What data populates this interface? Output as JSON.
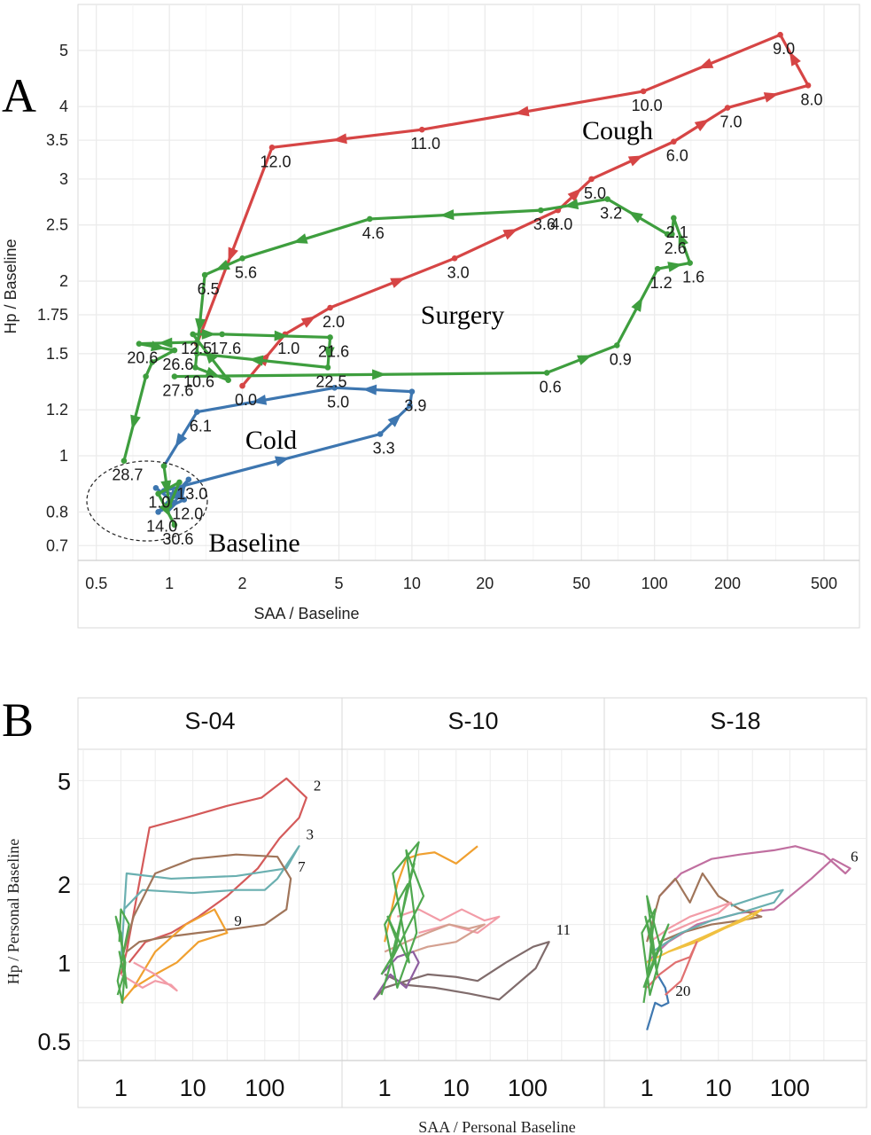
{
  "figure": {
    "panel_a_letter": "A",
    "panel_b_letter": "B"
  },
  "chart_data": [
    {
      "type": "line",
      "panel": "A",
      "xlabel": "SAA / Baseline",
      "ylabel": "Hp / Baseline",
      "xscale": "log",
      "yscale": "log",
      "xlim": [
        0.42,
        700
      ],
      "ylim": [
        0.66,
        6.0
      ],
      "xticks": [
        0.5,
        1,
        2,
        5,
        10,
        20,
        50,
        100,
        200,
        500
      ],
      "xtick_labels": [
        "0.5",
        "1",
        "2",
        "5",
        "10",
        "20",
        "50",
        "100",
        "200",
        "500"
      ],
      "yticks": [
        0.7,
        0.8,
        1,
        1.2,
        1.5,
        1.75,
        2,
        2.5,
        3,
        3.5,
        4,
        5
      ],
      "ytick_labels": [
        "0.7",
        "0.8",
        "1",
        "1.2",
        "1.5",
        "1.75",
        "2",
        "2.5",
        "3",
        "3.5",
        "4",
        "5"
      ],
      "grid": true,
      "series": [
        {
          "name": "Cough",
          "color": "#d64545",
          "x": [
            2.0,
            3.0,
            4.6,
            15,
            40,
            55,
            120,
            200,
            430,
            330,
            90,
            11,
            2.65,
            1.3
          ],
          "y": [
            1.32,
            1.62,
            1.8,
            2.19,
            2.65,
            3.0,
            3.48,
            3.98,
            4.35,
            5.32,
            4.25,
            3.65,
            3.4,
            1.56
          ],
          "labels": [
            "0.0",
            "1.0",
            "2.0",
            "3.0",
            "4.0",
            "5.0",
            "6.0",
            "7.0",
            "8.0",
            "9.0",
            "10.0",
            "11.0",
            "12.0",
            ""
          ]
        },
        {
          "name": "Surgery",
          "color": "#3e9e3e",
          "x": [
            1.05,
            36,
            70,
            103,
            140,
            120,
            118,
            113,
            64,
            34,
            6.7,
            2.0,
            1.4,
            1.28,
            1.75,
            1.25,
            1.65,
            4.6,
            4.5,
            1.3,
            1.3,
            0.75,
            1.05,
            0.85,
            0.8,
            0.65
          ],
          "y": [
            1.37,
            1.39,
            1.55,
            2.1,
            2.15,
            2.57,
            2.41,
            2.41,
            2.77,
            2.65,
            2.56,
            2.19,
            2.05,
            1.42,
            1.35,
            1.62,
            1.62,
            1.6,
            1.42,
            1.5,
            1.57,
            1.56,
            1.52,
            1.45,
            1.37,
            0.98
          ],
          "labels": [
            "27.6",
            "0.6",
            "0.9",
            "1.2",
            "1.6",
            "2.1",
            "2.6",
            "",
            "3.2",
            "3.6",
            "4.6",
            "5.6",
            "6.5",
            "10.6",
            "",
            "12.5",
            "17.6",
            "21.6",
            "22.5",
            "",
            "",
            "20.6",
            "26.6",
            "",
            "",
            "28.7"
          ]
        },
        {
          "name": "Cold",
          "color": "#3d76b0",
          "x": [
            0.88,
            1.05,
            1.2,
            0.9,
            1.15,
            0.95,
            7.4,
            9.8,
            10,
            4.8,
            1.3,
            0.95
          ],
          "y": [
            0.88,
            0.83,
            0.91,
            0.8,
            0.84,
            0.87,
            1.09,
            1.22,
            1.29,
            1.31,
            1.19,
            0.96
          ],
          "labels": [
            "1.0",
            "",
            "13.0",
            "14.0",
            "12.0",
            "",
            "3.3",
            "",
            "3.9",
            "5.0",
            "6.1",
            ""
          ]
        },
        {
          "name": "Baseline",
          "color": "#3e9e3e",
          "x": [
            0.95,
            1.0,
            1.1,
            0.9,
            1.05
          ],
          "y": [
            0.96,
            0.82,
            0.9,
            0.86,
            0.76
          ],
          "labels": [
            "",
            "",
            "",
            "",
            "30.6"
          ]
        }
      ],
      "annotations": [
        {
          "text": "Cough",
          "color": "#d64545"
        },
        {
          "text": "Surgery",
          "color": "#3e9e3e"
        },
        {
          "text": "Cold",
          "color": "#3d76b0"
        },
        {
          "text": "Baseline",
          "color": "#111111"
        }
      ]
    },
    {
      "type": "line",
      "panel": "B",
      "xlabel": "SAA / Personal Baseline",
      "ylabel": "Hp / Personal Baseline",
      "xscale": "log",
      "yscale": "log",
      "xlim": [
        0.3,
        1000
      ],
      "ylim": [
        0.42,
        6.6
      ],
      "xticks": [
        1,
        10,
        100
      ],
      "xtick_labels": [
        "1",
        "10",
        "100"
      ],
      "yticks": [
        0.5,
        1,
        2,
        5
      ],
      "ytick_labels": [
        "0.5",
        "1",
        "2",
        "5"
      ],
      "grid": true,
      "facets": [
        {
          "title": "S-04",
          "series": [
            {
              "name": "2",
              "color": "#d45a5a",
              "x": [
                1,
                1.2,
                2.5,
                8,
                30,
                90,
                200,
                380,
                300,
                160,
                80,
                30,
                12,
                5,
                2.2,
                1.3
              ],
              "y": [
                0.9,
                1.1,
                3.3,
                3.6,
                4.0,
                4.3,
                5.1,
                4.3,
                3.6,
                3.0,
                2.3,
                1.8,
                1.5,
                1.3,
                1.2,
                1.0
              ]
            },
            {
              "name": "3",
              "color": "#6aafb0",
              "x": [
                1,
                1.2,
                5,
                40,
                200,
                300,
                150,
                100,
                40,
                10,
                2,
                1.1
              ],
              "y": [
                1.0,
                2.2,
                2.1,
                2.15,
                2.3,
                2.8,
                2.1,
                1.9,
                1.9,
                1.85,
                1.9,
                1.6
              ]
            },
            {
              "name": "7",
              "color": "#a0755a",
              "x": [
                1,
                1.5,
                3,
                10,
                40,
                150,
                230,
                200,
                100,
                40,
                12,
                4,
                1.8,
                1.2
              ],
              "y": [
                1.0,
                1.5,
                2.2,
                2.5,
                2.6,
                2.55,
                2.1,
                1.6,
                1.4,
                1.35,
                1.3,
                1.25,
                1.2,
                1.1
              ]
            },
            {
              "name": "9",
              "color": "#f0a030",
              "x": [
                1,
                1.5,
                3,
                8,
                20,
                30,
                12,
                6,
                3,
                1.5
              ],
              "y": [
                0.7,
                0.8,
                1.1,
                1.4,
                1.6,
                1.3,
                1.2,
                1.0,
                0.9,
                0.8
              ]
            },
            {
              "name": "",
              "color": "#f29ca7",
              "x": [
                1,
                2,
                3,
                5,
                6,
                3,
                1.5
              ],
              "y": [
                0.9,
                0.8,
                0.85,
                0.82,
                0.78,
                0.9,
                1.0
              ]
            },
            {
              "name": "",
              "color": "#4fa84f",
              "x": [
                0.9,
                1.1,
                0.95,
                1.2,
                1.0,
                0.85,
                1.15,
                1.05,
                0.9,
                1.3,
                1.0,
                0.95
              ],
              "y": [
                0.75,
                0.9,
                1.1,
                0.8,
                1.3,
                1.5,
                1.0,
                0.7,
                0.85,
                1.4,
                1.6,
                1.2
              ]
            }
          ],
          "annotations": [
            "2",
            "3",
            "7",
            "9"
          ]
        },
        {
          "title": "S-10",
          "series": [
            {
              "name": "11",
              "color": "#806c6c",
              "x": [
                0.7,
                1,
                2,
                4,
                10,
                20,
                50,
                120,
                200,
                130,
                40,
                15,
                5,
                2,
                1
              ],
              "y": [
                0.72,
                0.8,
                0.85,
                0.9,
                0.88,
                0.85,
                1.0,
                1.15,
                1.2,
                0.95,
                0.72,
                0.76,
                0.8,
                0.82,
                0.9
              ]
            },
            {
              "name": "",
              "color": "#f0a030",
              "x": [
                1,
                1.5,
                2,
                3,
                5,
                10,
                20
              ],
              "y": [
                1.2,
                2.0,
                2.5,
                2.6,
                2.65,
                2.4,
                2.8
              ]
            },
            {
              "name": "",
              "color": "#f29ca7",
              "x": [
                1.5,
                3,
                6,
                12,
                25,
                40,
                20,
                8,
                3
              ],
              "y": [
                1.5,
                1.6,
                1.45,
                1.6,
                1.45,
                1.5,
                1.3,
                1.4,
                1.3
              ]
            },
            {
              "name": "",
              "color": "#d4a090",
              "x": [
                1,
                2,
                4,
                8,
                15,
                25,
                10,
                4,
                1.5
              ],
              "y": [
                1.1,
                1.2,
                1.3,
                1.4,
                1.35,
                1.4,
                1.2,
                1.15,
                1.05
              ]
            },
            {
              "name": "",
              "color": "#8e5fa0",
              "x": [
                0.7,
                1.2,
                2,
                3,
                2.5,
                1.5,
                0.9
              ],
              "y": [
                0.72,
                0.9,
                0.8,
                1.0,
                1.1,
                1.05,
                0.9
              ]
            },
            {
              "name": "",
              "color": "#4fa84f",
              "x": [
                0.9,
                1.5,
                1.1,
                2.2,
                1.3,
                3,
                1.8,
                2.6,
                1.2,
                3.5,
                2,
                2.8,
                1.5,
                1,
                2.1,
                1.4,
                0.9
              ],
              "y": [
                0.75,
                1.2,
                1.5,
                1.0,
                2.2,
                2.9,
                1.6,
                2.4,
                1.0,
                1.8,
                2.7,
                1.3,
                0.8,
                1.4,
                2.0,
                1.1,
                0.9
              ]
            }
          ],
          "annotations": [
            "11"
          ]
        },
        {
          "title": "S-18",
          "series": [
            {
              "name": "6",
              "color": "#c06fa0",
              "x": [
                1,
                2,
                5,
                20,
                60,
                200,
                400,
                700,
                600,
                300,
                120,
                60,
                20,
                8,
                3,
                1.5
              ],
              "y": [
                1.0,
                1.2,
                1.4,
                1.55,
                1.6,
                2.1,
                2.5,
                2.3,
                2.2,
                2.6,
                2.8,
                2.7,
                2.6,
                2.5,
                2.2,
                1.8
              ]
            },
            {
              "name": "20",
              "color": "#3f78b0",
              "x": [
                1,
                1.1,
                1.3,
                1.6,
                2.0,
                1.8,
                1.4
              ],
              "y": [
                0.55,
                0.6,
                0.7,
                0.68,
                0.7,
                0.8,
                0.9
              ]
            },
            {
              "name": "",
              "color": "#a0755a",
              "x": [
                1,
                1.5,
                2.5,
                4,
                6,
                10,
                20,
                40,
                20,
                8,
                3,
                1.5
              ],
              "y": [
                1.2,
                1.8,
                2.1,
                1.7,
                2.2,
                1.8,
                1.6,
                1.5,
                1.45,
                1.4,
                1.3,
                1.2
              ]
            },
            {
              "name": "",
              "color": "#f0c040",
              "x": [
                1,
                2,
                5,
                12,
                30,
                40,
                15,
                6,
                2
              ],
              "y": [
                1.0,
                1.1,
                1.2,
                1.35,
                1.5,
                1.6,
                1.4,
                1.25,
                1.1
              ]
            },
            {
              "name": "",
              "color": "#6aafb0",
              "x": [
                1.2,
                3,
                8,
                20,
                60,
                80,
                40,
                15
              ],
              "y": [
                1.1,
                1.3,
                1.45,
                1.55,
                1.7,
                1.9,
                1.8,
                1.65
              ]
            },
            {
              "name": "",
              "color": "#e07070",
              "x": [
                1,
                1.5,
                2.5,
                4,
                5,
                3,
                1.8
              ],
              "y": [
                0.8,
                0.9,
                1.0,
                1.05,
                1.2,
                0.85,
                0.75
              ]
            },
            {
              "name": "",
              "color": "#f29ca7",
              "x": [
                1.1,
                2,
                4,
                8,
                15,
                10,
                5,
                2
              ],
              "y": [
                1.2,
                1.35,
                1.5,
                1.6,
                1.7,
                1.55,
                1.45,
                1.3
              ]
            },
            {
              "name": "",
              "color": "#4fa84f",
              "x": [
                0.9,
                1.2,
                0.95,
                1.4,
                1.0,
                1.6,
                1.1,
                0.85,
                1.3,
                1.0,
                2.0,
                1.2,
                0.9
              ],
              "y": [
                0.7,
                1.2,
                1.5,
                0.9,
                1.8,
                1.1,
                0.75,
                1.3,
                1.6,
                0.85,
                1.4,
                1.0,
                0.8
              ]
            }
          ],
          "annotations": [
            "6",
            "20"
          ]
        }
      ]
    }
  ]
}
